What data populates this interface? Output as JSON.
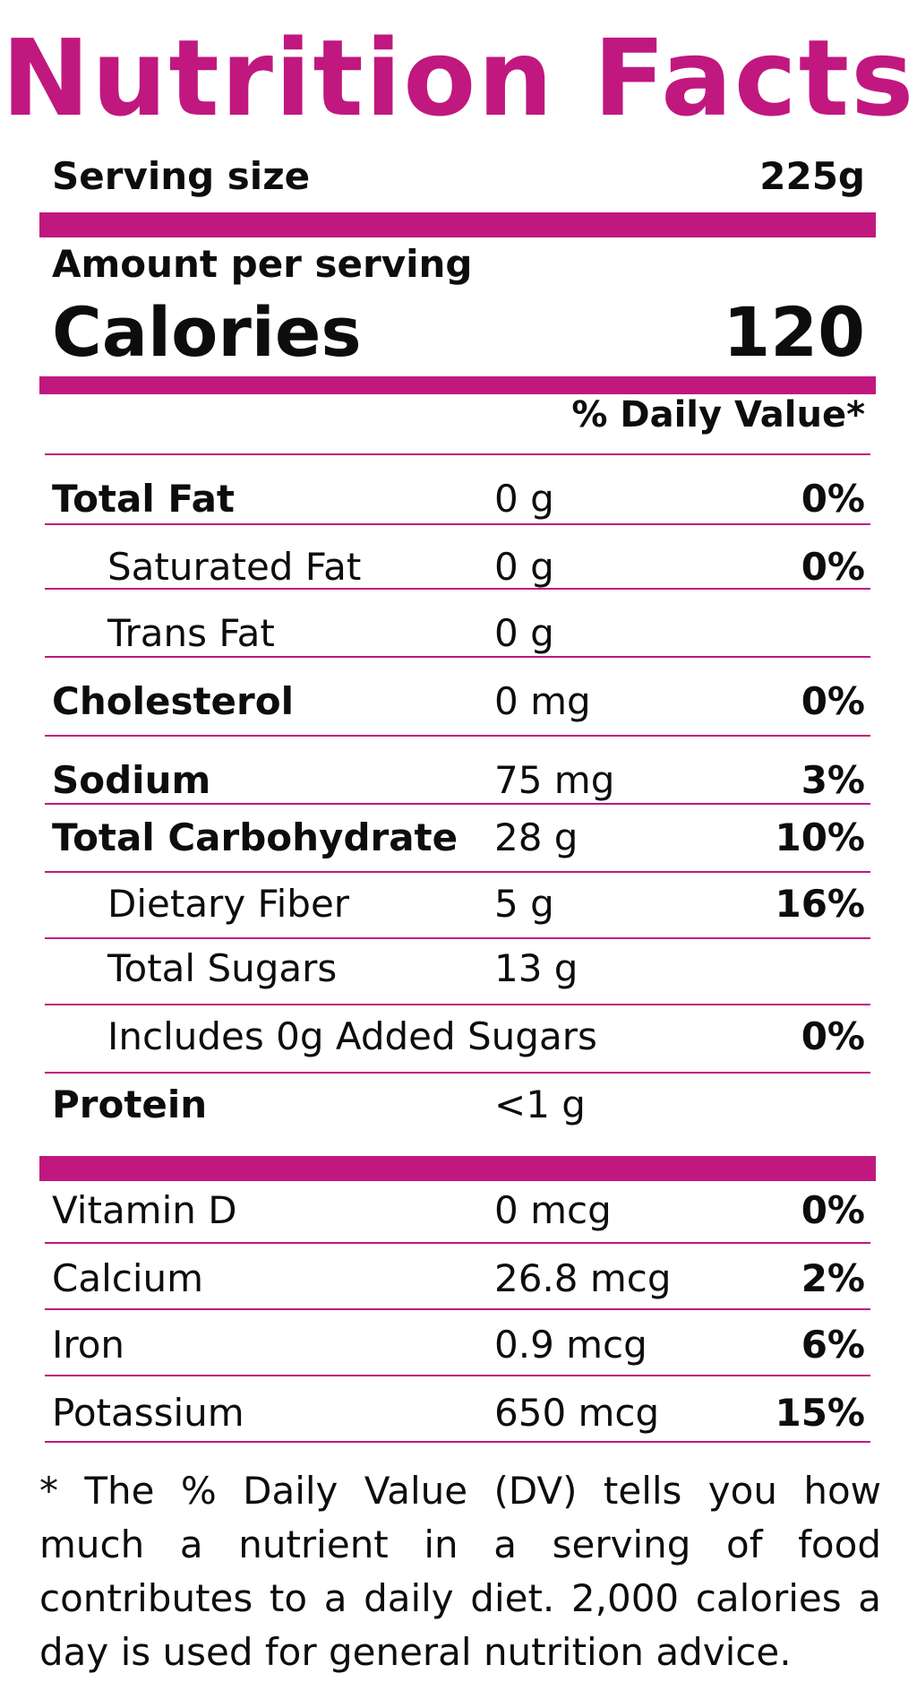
{
  "colors": {
    "accent": "#c0187f",
    "text": "#0d0d0d"
  },
  "label": {
    "title": "Nutrition Facts",
    "serving_size_label": "Serving size",
    "serving_size_value": "225g",
    "amount_per_serving": "Amount per serving",
    "calories_label": "Calories",
    "calories_value": "120",
    "dv_header": "% Daily Value*",
    "nutrients": [
      {
        "name": "Total Fat",
        "amount": "0 g",
        "dv": "0%"
      },
      {
        "name": "Saturated Fat",
        "amount": "0 g",
        "dv": "0%"
      },
      {
        "name": "Trans Fat",
        "amount": "0 g",
        "dv": ""
      },
      {
        "name": "Cholesterol",
        "amount": "0 mg",
        "dv": "0%"
      },
      {
        "name": "Sodium",
        "amount": "75 mg",
        "dv": "3%"
      },
      {
        "name": "Total Carbohydrate",
        "amount": "28 g",
        "dv": "10%"
      },
      {
        "name": "Dietary Fiber",
        "amount": "5 g",
        "dv": "16%"
      },
      {
        "name": "Total Sugars",
        "amount": "13  g",
        "dv": ""
      },
      {
        "name": "Includes 0g Added Sugars",
        "amount": "",
        "dv": "0%"
      },
      {
        "name": "Protein",
        "amount": "<1 g",
        "dv": ""
      }
    ],
    "vitamins": [
      {
        "name": "Vitamin D",
        "amount": "0 mcg",
        "dv": "0%"
      },
      {
        "name": "Calcium",
        "amount": "26.8 mcg",
        "dv": "2%"
      },
      {
        "name": "Iron",
        "amount": "0.9 mcg",
        "dv": "6%"
      },
      {
        "name": "Potassium",
        "amount": "650 mcg",
        "dv": "15%"
      }
    ],
    "footnote": "* The % Daily Value (DV) tells you how much a nutrient in a serving of food contributes to a daily diet. 2,000 calories a day is used for general nutrition advice."
  }
}
